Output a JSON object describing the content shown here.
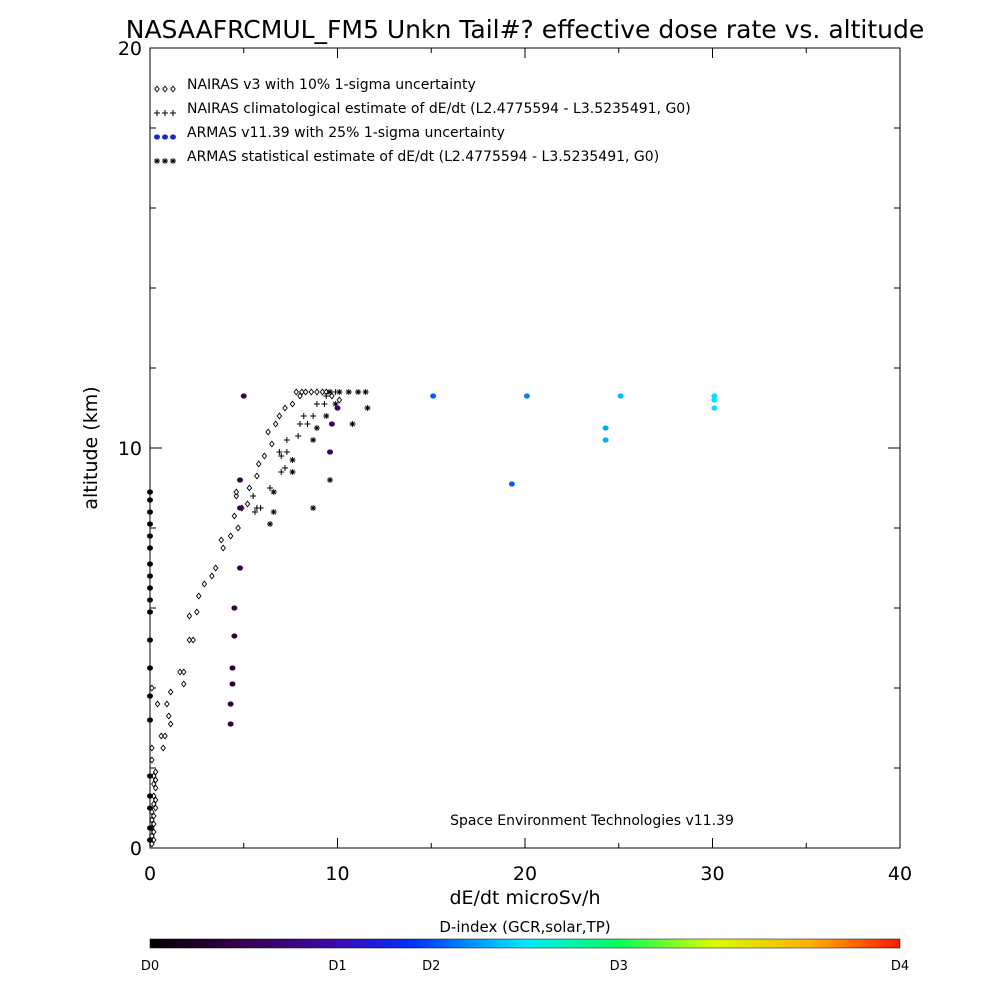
{
  "chart_data": {
    "type": "scatter",
    "title": "NASAAFRCMUL_FM5 Unkn Tail#? effective dose rate vs. altitude",
    "xlabel": "dE/dt microSv/h",
    "ylabel": "altitude (km)",
    "xlim": [
      0,
      40
    ],
    "ylim": [
      0,
      20
    ],
    "x_ticks": [
      "0",
      "10",
      "20",
      "30",
      "40"
    ],
    "y_ticks": [
      "0",
      "10",
      "20"
    ],
    "grid": false,
    "legend_position": "top-left",
    "note": "Space Environment Technologies v11.39",
    "series": [
      {
        "name": "NAIRAS v3 with 10% 1-sigma uncertainty",
        "marker": "diamond",
        "color": "#000000",
        "points": [
          [
            0.1,
            0.1
          ],
          [
            0.2,
            0.2
          ],
          [
            0.1,
            0.3
          ],
          [
            0.2,
            0.4
          ],
          [
            0.1,
            0.5
          ],
          [
            0.2,
            0.6
          ],
          [
            0.1,
            0.7
          ],
          [
            0.2,
            0.8
          ],
          [
            0.1,
            0.9
          ],
          [
            0.3,
            1.0
          ],
          [
            0.2,
            1.1
          ],
          [
            0.3,
            1.2
          ],
          [
            0.2,
            1.3
          ],
          [
            0.3,
            1.5
          ],
          [
            0.2,
            1.6
          ],
          [
            0.3,
            1.7
          ],
          [
            0.2,
            1.8
          ],
          [
            0.3,
            1.9
          ],
          [
            0.1,
            2.2
          ],
          [
            0.1,
            2.5
          ],
          [
            0.7,
            2.5
          ],
          [
            0.6,
            2.8
          ],
          [
            0.8,
            2.8
          ],
          [
            1.1,
            3.1
          ],
          [
            1.0,
            3.3
          ],
          [
            0.4,
            3.6
          ],
          [
            0.9,
            3.6
          ],
          [
            1.1,
            3.9
          ],
          [
            0.1,
            4.0
          ],
          [
            1.8,
            4.1
          ],
          [
            1.6,
            4.4
          ],
          [
            1.8,
            4.4
          ],
          [
            2.1,
            5.2
          ],
          [
            2.3,
            5.2
          ],
          [
            2.1,
            5.8
          ],
          [
            2.5,
            5.9
          ],
          [
            2.6,
            6.3
          ],
          [
            2.9,
            6.6
          ],
          [
            3.3,
            6.8
          ],
          [
            3.5,
            7.0
          ],
          [
            3.9,
            7.5
          ],
          [
            3.8,
            7.7
          ],
          [
            4.3,
            7.8
          ],
          [
            4.7,
            8.0
          ],
          [
            4.5,
            8.3
          ],
          [
            4.9,
            8.5
          ],
          [
            4.6,
            8.8
          ],
          [
            4.6,
            8.9
          ],
          [
            5.2,
            8.6
          ],
          [
            5.3,
            9.0
          ],
          [
            5.7,
            9.3
          ],
          [
            5.8,
            9.6
          ],
          [
            6.1,
            9.8
          ],
          [
            6.5,
            10.1
          ],
          [
            6.3,
            10.4
          ],
          [
            6.7,
            10.6
          ],
          [
            6.9,
            10.8
          ],
          [
            7.2,
            11.0
          ],
          [
            7.6,
            11.1
          ],
          [
            8.0,
            11.3
          ],
          [
            7.8,
            11.4
          ],
          [
            8.1,
            11.4
          ],
          [
            8.3,
            11.4
          ],
          [
            8.6,
            11.4
          ],
          [
            8.9,
            11.4
          ],
          [
            9.2,
            11.4
          ],
          [
            9.4,
            11.4
          ],
          [
            9.7,
            11.3
          ],
          [
            10.1,
            11.2
          ]
        ]
      },
      {
        "name": "NAIRAS climatological estimate of dE/dt (L2.4775594 - L3.5235491, G0)",
        "marker": "plus",
        "color": "#000000",
        "points": [
          [
            5.6,
            8.4
          ],
          [
            5.7,
            8.5
          ],
          [
            5.9,
            8.5
          ],
          [
            5.5,
            8.8
          ],
          [
            6.4,
            9.0
          ],
          [
            7.0,
            9.4
          ],
          [
            7.2,
            9.5
          ],
          [
            7.0,
            9.8
          ],
          [
            6.9,
            9.9
          ],
          [
            7.3,
            9.9
          ],
          [
            7.3,
            10.2
          ],
          [
            7.9,
            10.3
          ],
          [
            8.0,
            10.6
          ],
          [
            8.4,
            10.6
          ],
          [
            8.2,
            10.8
          ],
          [
            8.7,
            10.8
          ],
          [
            8.9,
            11.1
          ],
          [
            9.3,
            11.1
          ],
          [
            9.4,
            11.3
          ],
          [
            9.6,
            11.4
          ],
          [
            9.9,
            11.4
          ]
        ]
      },
      {
        "name": "ARMAS v11.39 with 25% 1-sigma uncertainty",
        "marker": "filled-circle",
        "color_by": "D-index",
        "points": [
          [
            0.0,
            0.2,
            0.05
          ],
          [
            0.0,
            0.5,
            0.05
          ],
          [
            0.0,
            1.0,
            0.05
          ],
          [
            0.0,
            1.3,
            0.05
          ],
          [
            0.0,
            1.8,
            0.05
          ],
          [
            0.0,
            3.2,
            0.05
          ],
          [
            0.0,
            3.8,
            0.05
          ],
          [
            0.0,
            4.5,
            0.05
          ],
          [
            0.0,
            5.2,
            0.05
          ],
          [
            0.0,
            5.9,
            0.05
          ],
          [
            0.0,
            6.2,
            0.05
          ],
          [
            0.0,
            6.5,
            0.05
          ],
          [
            0.0,
            6.8,
            0.05
          ],
          [
            0.0,
            7.1,
            0.05
          ],
          [
            0.0,
            7.5,
            0.05
          ],
          [
            0.0,
            7.8,
            0.05
          ],
          [
            0.0,
            8.1,
            0.05
          ],
          [
            0.0,
            8.4,
            0.05
          ],
          [
            0.0,
            8.7,
            0.05
          ],
          [
            0.0,
            8.9,
            0.05
          ],
          [
            4.3,
            3.1,
            0.4
          ],
          [
            4.3,
            3.6,
            0.4
          ],
          [
            4.4,
            4.1,
            0.4
          ],
          [
            4.4,
            4.5,
            0.4
          ],
          [
            4.5,
            5.3,
            0.45
          ],
          [
            4.5,
            6.0,
            0.45
          ],
          [
            4.8,
            7.0,
            0.45
          ],
          [
            4.8,
            8.5,
            0.5
          ],
          [
            4.8,
            9.2,
            0.5
          ],
          [
            5.0,
            11.3,
            0.5
          ],
          [
            9.6,
            9.9,
            0.6
          ],
          [
            9.7,
            10.6,
            0.6
          ],
          [
            10.0,
            11.0,
            0.6
          ],
          [
            15.1,
            11.3,
            2.1
          ],
          [
            19.3,
            9.1,
            2.1
          ],
          [
            20.1,
            11.3,
            2.3
          ],
          [
            24.3,
            10.2,
            2.6
          ],
          [
            24.3,
            10.5,
            2.6
          ],
          [
            25.1,
            11.3,
            2.7
          ],
          [
            30.1,
            11.0,
            2.95
          ],
          [
            30.1,
            11.2,
            2.95
          ],
          [
            30.1,
            11.3,
            2.95
          ]
        ]
      },
      {
        "name": "ARMAS statistical estimate of dE/dt (L2.4775594 - L3.5235491, G0)",
        "marker": "asterisk",
        "color": "#000000",
        "points": [
          [
            6.4,
            8.1
          ],
          [
            6.6,
            8.4
          ],
          [
            6.6,
            8.9
          ],
          [
            8.7,
            8.5
          ],
          [
            9.6,
            9.2
          ],
          [
            7.6,
            9.4
          ],
          [
            7.6,
            9.7
          ],
          [
            8.7,
            10.2
          ],
          [
            8.9,
            10.5
          ],
          [
            9.4,
            10.8
          ],
          [
            10.8,
            10.6
          ],
          [
            9.6,
            11.4
          ],
          [
            10.1,
            11.4
          ],
          [
            10.6,
            11.4
          ],
          [
            11.1,
            11.4
          ],
          [
            11.5,
            11.4
          ],
          [
            11.6,
            11.0
          ],
          [
            9.9,
            11.1
          ]
        ]
      }
    ],
    "colorbar": {
      "title": "D-index (GCR,solar,TP)",
      "labels": [
        "D0",
        "D1",
        "D2",
        "D3",
        "D4"
      ],
      "label_values": [
        0,
        1,
        2,
        4,
        8
      ]
    }
  }
}
